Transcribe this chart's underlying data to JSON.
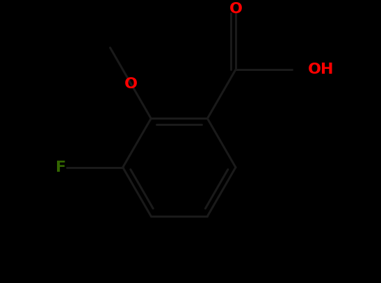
{
  "background_color": "#000000",
  "bond_color": "#000000",
  "line_color": "#111111",
  "atom_colors": {
    "O": "#ff0000",
    "F": "#336600",
    "C": "#000000"
  },
  "bond_width": 2.2,
  "font_size_atoms": 16,
  "figsize": [
    5.48,
    4.07
  ],
  "dpi": 100
}
